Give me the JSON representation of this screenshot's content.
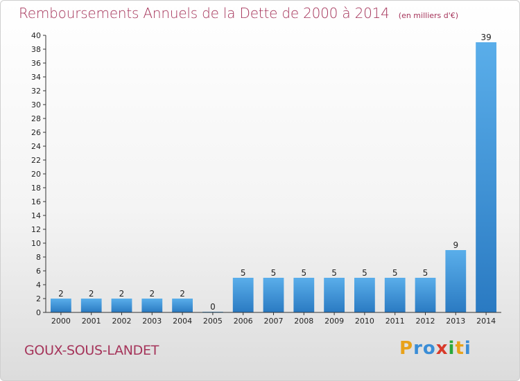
{
  "header": {
    "title": "Remboursements Annuels de la Dette de 2000 à 2014",
    "unit": "(en milliers d'€)"
  },
  "footer": {
    "commune": "GOUX-SOUS-LANDET",
    "logo_letters": [
      "P",
      "r",
      "o",
      "x",
      "i",
      "t",
      "i"
    ]
  },
  "colors": {
    "title": "#a5345a",
    "bar_light": "#5aaeea",
    "bar_dark": "#2a7ac2",
    "axis": "#333333"
  },
  "chart_data": {
    "type": "bar",
    "title": "Remboursements Annuels de la Dette de 2000 à 2014",
    "subtitle": "(en milliers d'€)",
    "categories": [
      "2000",
      "2001",
      "2002",
      "2003",
      "2004",
      "2005",
      "2006",
      "2007",
      "2008",
      "2009",
      "2010",
      "2011",
      "2012",
      "2013",
      "2014"
    ],
    "values": [
      2,
      2,
      2,
      2,
      2,
      0,
      5,
      5,
      5,
      5,
      5,
      5,
      5,
      9,
      39
    ],
    "xlabel": "",
    "ylabel": "",
    "ylim": [
      0,
      40
    ],
    "yticks": [
      0,
      2,
      4,
      6,
      8,
      10,
      12,
      14,
      16,
      18,
      20,
      22,
      24,
      26,
      28,
      30,
      32,
      34,
      36,
      38,
      40
    ],
    "grid": false,
    "legend": "none"
  }
}
